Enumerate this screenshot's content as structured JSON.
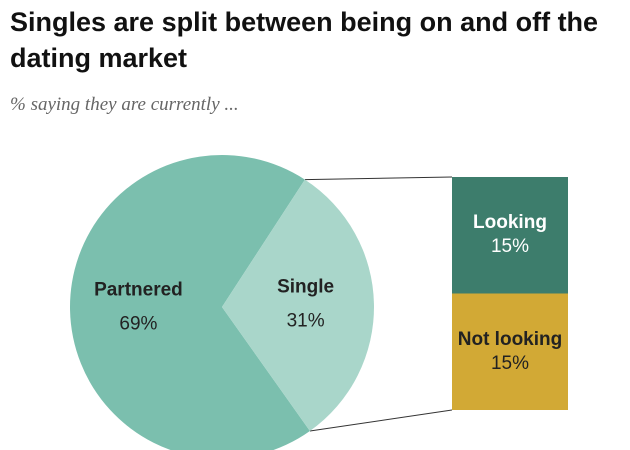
{
  "chart_data": [
    {
      "type": "pie",
      "title": "Singles are split between being on and off the dating market",
      "subtitle": "% saying they are currently ...",
      "categories": [
        "Partnered",
        "Single"
      ],
      "values": [
        69,
        31
      ],
      "value_labels": [
        "69%",
        "31%"
      ],
      "colors": [
        "#7bbfae",
        "#a9d6ca"
      ]
    },
    {
      "type": "stacked-bar",
      "categories": [
        "Looking",
        "Not looking"
      ],
      "values": [
        15,
        15
      ],
      "value_labels": [
        "15%",
        "15%"
      ],
      "colors": [
        "#3d7d6c",
        "#d2a935"
      ]
    }
  ]
}
